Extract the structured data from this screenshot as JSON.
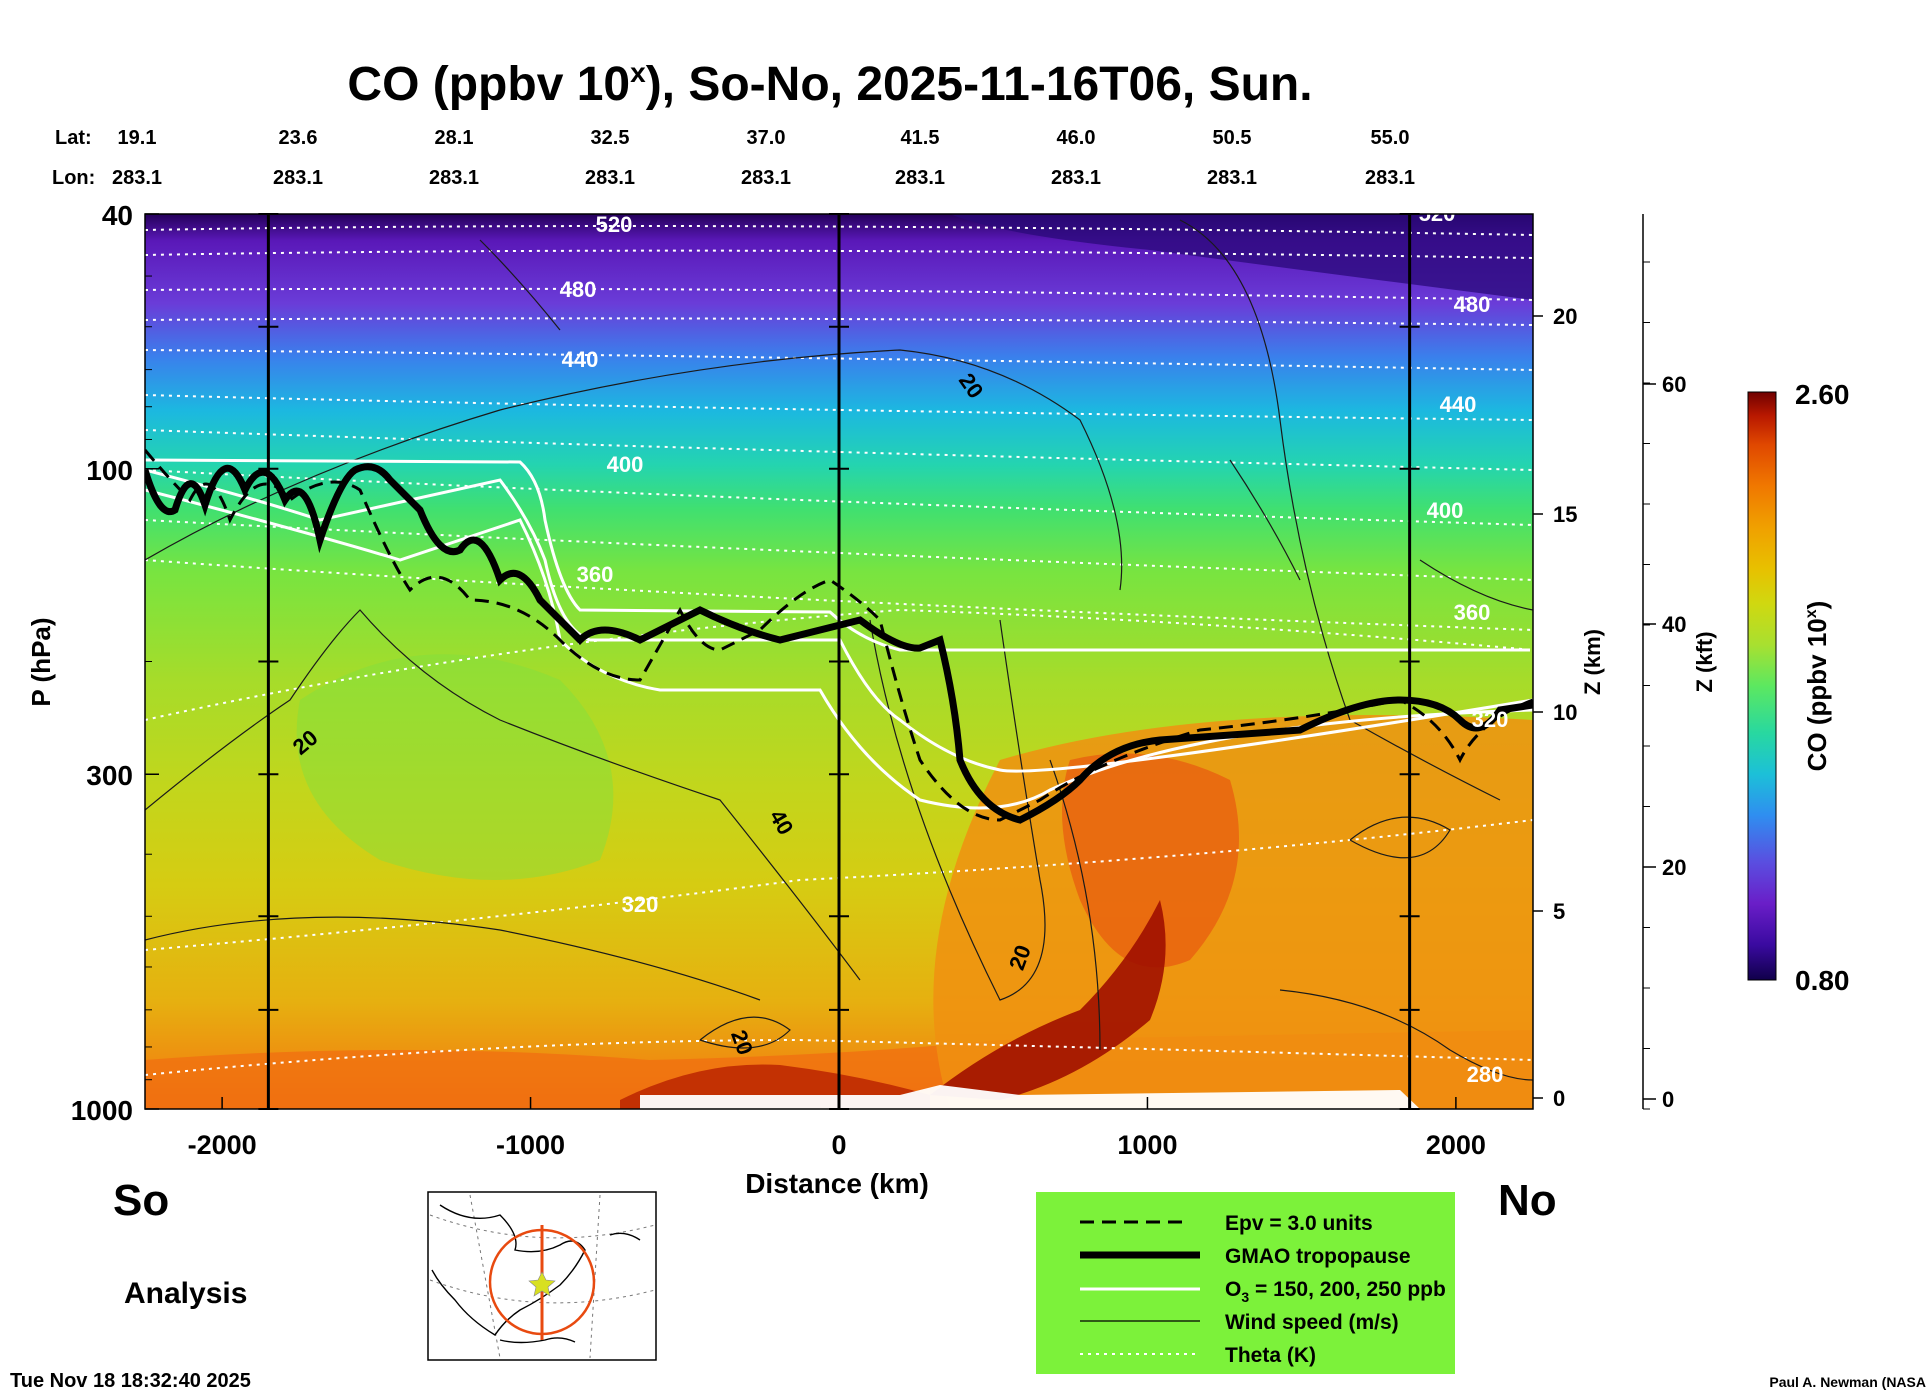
{
  "chart_data": {
    "type": "heatmap",
    "title_main": "CO (ppbv 10",
    "title_sup": "x",
    "title_rest": "), So-No, 2025-11-16T06, Sun.",
    "lat_label": "Lat:",
    "lon_label": "Lon:",
    "lats": [
      "19.1",
      "23.6",
      "28.1",
      "32.5",
      "37.0",
      "41.5",
      "46.0",
      "50.5",
      "55.0"
    ],
    "lons": [
      "283.1",
      "283.1",
      "283.1",
      "283.1",
      "283.1",
      "283.1",
      "283.1",
      "283.1",
      "283.1"
    ],
    "x_axis": {
      "label": "Distance (km)",
      "range": [
        -2250,
        2250
      ],
      "ticks": [
        -2000,
        -1000,
        0,
        1000,
        2000
      ]
    },
    "y_axis": {
      "label": "P (hPa)",
      "range_hPa": [
        1000,
        40
      ],
      "ticks": [
        "40",
        "100",
        "300",
        "1000"
      ],
      "tick_values": [
        40,
        100,
        300,
        1000
      ]
    },
    "z_km_axis": {
      "label": "Z (km)",
      "ticks": [
        "0",
        "5",
        "10",
        "15",
        "20"
      ]
    },
    "z_kft_axis": {
      "label": "Z (kft)",
      "ticks": [
        "0",
        "20",
        "40",
        "60"
      ]
    },
    "colorbar": {
      "label_main": "CO (ppbv 10",
      "label_sup": "x",
      "label_rest": ")",
      "min_label": "0.80",
      "max_label": "2.60",
      "colors": [
        "#10004a",
        "#3a0aa0",
        "#6a1ec8",
        "#5a4ee0",
        "#2f8ef0",
        "#1cc0d8",
        "#28d8a0",
        "#5ce860",
        "#a8e030",
        "#d0d810",
        "#e8c000",
        "#f0a000",
        "#f07800",
        "#e04800",
        "#b81800",
        "#700000"
      ]
    },
    "theta_labels": [
      "520",
      "480",
      "440",
      "400",
      "360",
      "320",
      "280",
      "520",
      "480",
      "440",
      "400",
      "360",
      "320"
    ],
    "wind_labels": [
      "20",
      "20",
      "40",
      "20",
      "20"
    ],
    "vertical_line_km": [
      -1850,
      0,
      1850
    ],
    "side_labels": {
      "south": "So",
      "north": "No",
      "analysis": "Analysis"
    },
    "legend": {
      "epv": "Epv = 3.0 units",
      "tropopause": "GMAO tropopause",
      "o3": "O",
      "o3_sub": "3",
      "o3_rest": " = 150, 200, 250 ppb",
      "wind": "Wind speed (m/s)",
      "theta": "Theta (K)",
      "bg_color": "#7cf23a"
    },
    "timestamp": "Tue Nov 18 18:32:40 2025",
    "credit": "Paul A. Newman (NASA"
  }
}
